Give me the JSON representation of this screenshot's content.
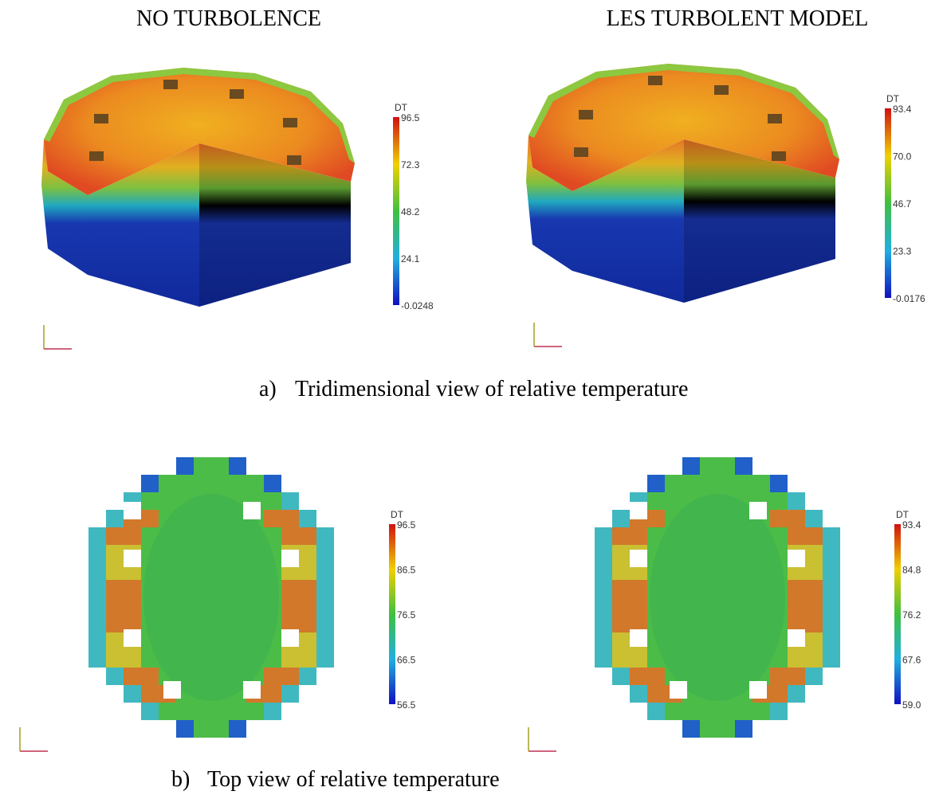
{
  "columns": [
    "NO TURBOLENCE",
    "LES TURBOLENT MODEL"
  ],
  "panels": [
    {
      "label": "a)",
      "caption": "Tridimensional view of relative temperature",
      "colorbars": [
        {
          "title": "DT",
          "ticks": [
            "96.5",
            "72.3",
            "48.2",
            "24.1",
            "-0.0248"
          ]
        },
        {
          "title": "DT",
          "ticks": [
            "93.4",
            "70.0",
            "46.7",
            "23.3",
            "-0.0176"
          ]
        }
      ]
    },
    {
      "label": "b)",
      "caption": "Top view of relative temperature",
      "colorbars": [
        {
          "title": "DT",
          "ticks": [
            "96.5",
            "86.5",
            "76.5",
            "66.5",
            "56.5"
          ]
        },
        {
          "title": "DT",
          "ticks": [
            "93.4",
            "84.8",
            "76.2",
            "67.6",
            "59.0"
          ]
        }
      ]
    }
  ]
}
